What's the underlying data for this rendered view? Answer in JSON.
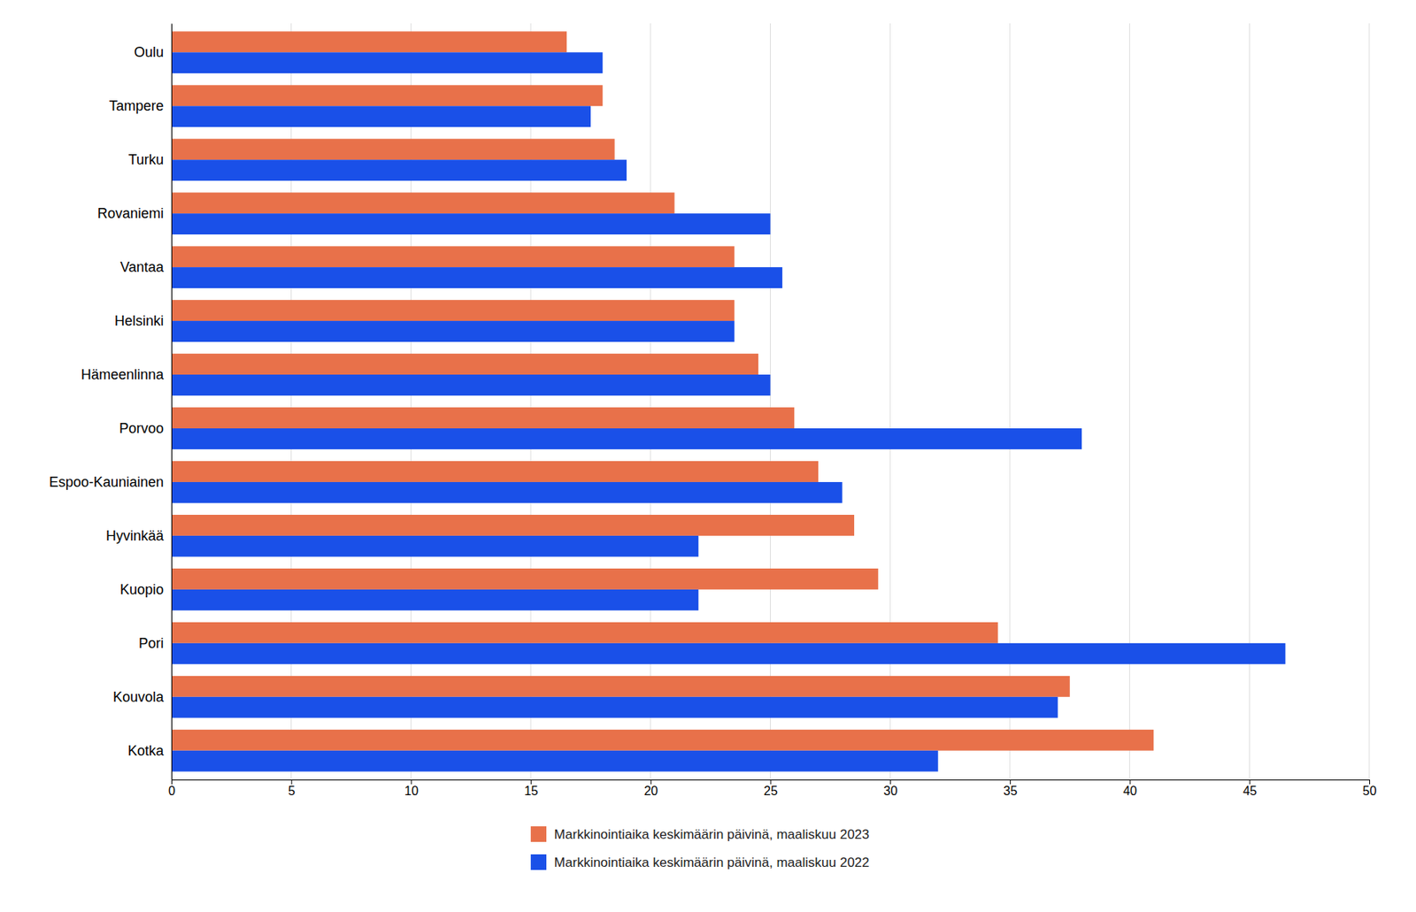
{
  "chart_data": {
    "type": "bar",
    "orientation": "horizontal",
    "categories": [
      "Kotka",
      "Kouvola",
      "Pori",
      "Kuopio",
      "Hyvinkää",
      "Espoo-Kauniainen",
      "Porvoo",
      "Hämeenlinna",
      "Helsinki",
      "Vantaa",
      "Rovaniemi",
      "Turku",
      "Tampere",
      "Oulu"
    ],
    "series": [
      {
        "name": "Markkinointiaika keskimäärin päivinä, maaliskuu 2023",
        "color": "#E8714A",
        "values": [
          41.0,
          37.5,
          34.5,
          29.5,
          28.5,
          27.0,
          26.0,
          24.5,
          23.5,
          23.5,
          21.0,
          18.5,
          18.0,
          16.5
        ]
      },
      {
        "name": "Markkinointiaika keskimäärin päivinä, maaliskuu 2022",
        "color": "#1A50E8",
        "values": [
          32.0,
          37.0,
          46.5,
          22.0,
          22.0,
          28.0,
          38.0,
          25.0,
          23.5,
          25.5,
          25.0,
          19.0,
          17.5,
          18.0
        ]
      }
    ],
    "xlim": [
      0,
      50
    ],
    "xticks": [
      0,
      5,
      10,
      15,
      20,
      25,
      30,
      35,
      40,
      45,
      50
    ],
    "grid": true,
    "legend": "bottom"
  }
}
